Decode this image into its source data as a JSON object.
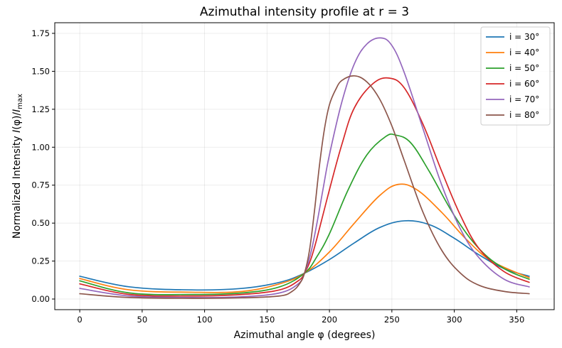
{
  "chart_data": {
    "type": "line",
    "title": "Azimuthal intensity profile at r = 3",
    "xlabel": "Azimuthal angle φ (degrees)",
    "ylabel": "Normalized Intensity I(φ)/I_max",
    "xlim": [
      -20,
      380
    ],
    "ylim": [
      -0.07,
      1.82
    ],
    "x_ticks": [
      0,
      50,
      100,
      150,
      200,
      250,
      300,
      350
    ],
    "x_tick_labels": [
      "0",
      "50",
      "100",
      "150",
      "200",
      "250",
      "300",
      "350"
    ],
    "y_ticks": [
      0,
      0.25,
      0.5,
      0.75,
      1.0,
      1.25,
      1.5,
      1.75
    ],
    "y_tick_labels": [
      "0.00",
      "0.25",
      "0.50",
      "0.75",
      "1.00",
      "1.25",
      "1.50",
      "1.75"
    ],
    "grid": true,
    "legend_position": "top-right",
    "series": [
      {
        "name": "i = 30°",
        "color": "#1f77b4",
        "x": [
          0,
          40,
          90,
          130,
          160,
          180,
          200,
          220,
          240,
          260,
          280,
          300,
          320,
          340,
          360
        ],
        "y": [
          0.15,
          0.08,
          0.06,
          0.07,
          0.11,
          0.17,
          0.26,
          0.37,
          0.47,
          0.515,
          0.49,
          0.4,
          0.29,
          0.2,
          0.15
        ]
      },
      {
        "name": "i = 40°",
        "color": "#ff7f0e",
        "x": [
          0,
          40,
          90,
          130,
          160,
          180,
          200,
          220,
          240,
          255,
          270,
          290,
          310,
          330,
          360
        ],
        "y": [
          0.135,
          0.06,
          0.045,
          0.05,
          0.1,
          0.17,
          0.31,
          0.5,
          0.68,
          0.755,
          0.72,
          0.57,
          0.39,
          0.25,
          0.14
        ]
      },
      {
        "name": "i = 50°",
        "color": "#2ca02c",
        "x": [
          0,
          40,
          90,
          130,
          160,
          180,
          190,
          200,
          215,
          230,
          245,
          253,
          265,
          280,
          300,
          320,
          340,
          360
        ],
        "y": [
          0.12,
          0.04,
          0.03,
          0.04,
          0.08,
          0.17,
          0.28,
          0.43,
          0.72,
          0.95,
          1.07,
          1.08,
          1.03,
          0.84,
          0.55,
          0.33,
          0.2,
          0.13
        ]
      },
      {
        "name": "i = 60°",
        "color": "#d62728",
        "x": [
          0,
          40,
          90,
          130,
          160,
          175,
          180,
          185,
          190,
          200,
          210,
          220,
          235,
          248,
          260,
          275,
          290,
          305,
          320,
          340,
          360
        ],
        "y": [
          0.1,
          0.03,
          0.02,
          0.03,
          0.06,
          0.12,
          0.17,
          0.26,
          0.4,
          0.72,
          1.02,
          1.26,
          1.42,
          1.455,
          1.39,
          1.15,
          0.84,
          0.55,
          0.33,
          0.18,
          0.11
        ]
      },
      {
        "name": "i = 70°",
        "color": "#9467bd",
        "x": [
          0,
          40,
          90,
          130,
          160,
          175,
          180,
          185,
          190,
          195,
          200,
          210,
          220,
          230,
          241,
          250,
          260,
          275,
          290,
          305,
          320,
          340,
          360
        ],
        "y": [
          0.07,
          0.02,
          0.01,
          0.015,
          0.04,
          0.1,
          0.17,
          0.3,
          0.5,
          0.73,
          0.95,
          1.3,
          1.55,
          1.68,
          1.72,
          1.67,
          1.49,
          1.12,
          0.75,
          0.46,
          0.27,
          0.13,
          0.08
        ]
      },
      {
        "name": "i = 80°",
        "color": "#8c564b",
        "x": [
          0,
          40,
          90,
          130,
          160,
          170,
          176,
          180,
          184,
          188,
          192,
          196,
          200,
          205,
          210,
          220,
          230,
          240,
          250,
          260,
          275,
          290,
          305,
          320,
          340,
          360
        ],
        "y": [
          0.035,
          0.01,
          0.005,
          0.008,
          0.02,
          0.05,
          0.1,
          0.17,
          0.32,
          0.58,
          0.88,
          1.12,
          1.28,
          1.38,
          1.44,
          1.47,
          1.43,
          1.32,
          1.14,
          0.91,
          0.57,
          0.32,
          0.17,
          0.09,
          0.05,
          0.035
        ]
      }
    ]
  }
}
